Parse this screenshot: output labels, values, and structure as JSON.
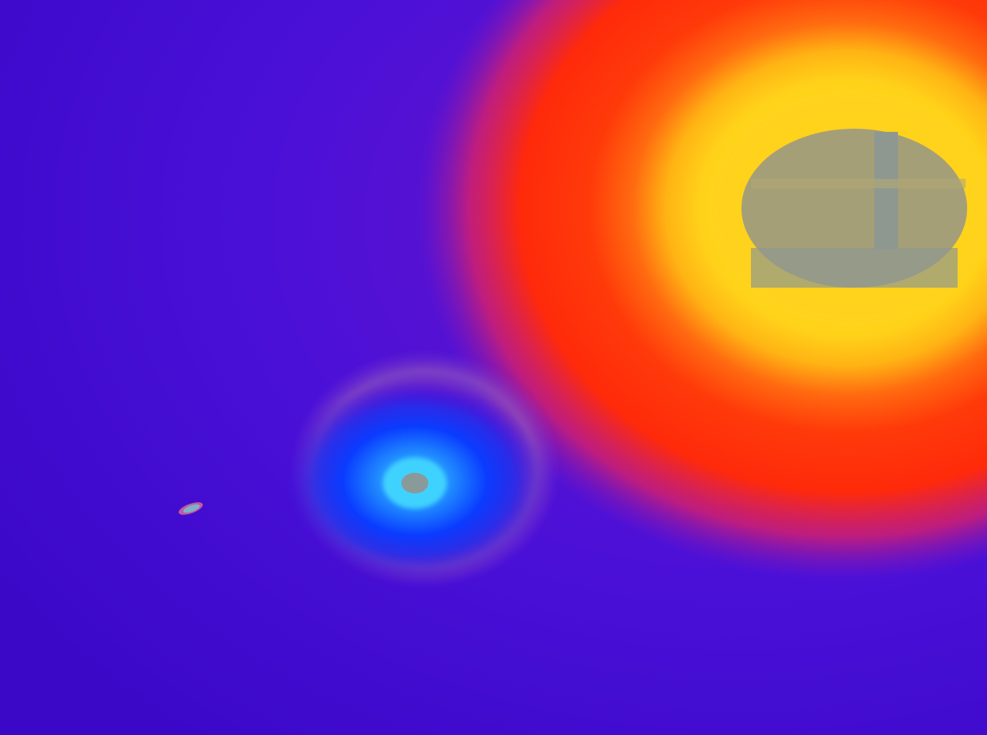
{
  "image": {
    "description_kind": "false-color thermal-style image",
    "colors": {
      "background": "#4a10d8",
      "background_dark": "#3b08c8",
      "hot_red": "#ff2a0a",
      "hot_orange": "#ff6a10",
      "hot_yellow": "#ffd21a",
      "hot_core": "#a59f78",
      "hot_core_grey": "#8f9890",
      "cold_blue": "#0a3cff",
      "cold_mid": "#1a78ff",
      "cold_cyan": "#3fd2ff",
      "cold_core": "#8a9a9a",
      "speck": "#7fb0c8"
    }
  }
}
